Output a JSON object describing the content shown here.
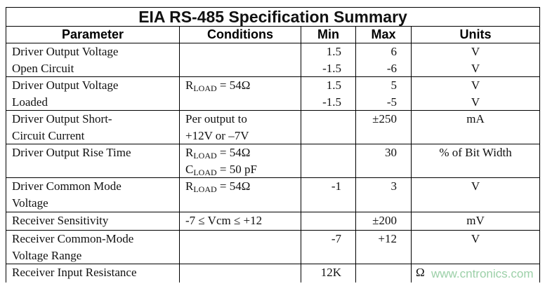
{
  "title": "EIA RS-485 Specification Summary",
  "headers": [
    "Parameter",
    "Conditions",
    "Min",
    "Max",
    "Units"
  ],
  "rows": [
    {
      "parameter": [
        "Driver Output Voltage",
        "Open Circuit"
      ],
      "conditions": [],
      "min": [
        "1.5",
        "-1.5"
      ],
      "max": [
        "6",
        "-6"
      ],
      "units": [
        "V",
        "V"
      ]
    },
    {
      "parameter": [
        "Driver Output Voltage",
        "Loaded"
      ],
      "conditions": [
        {
          "sym": "R",
          "sub": "LOAD",
          "rest": " = 54Ω"
        }
      ],
      "min": [
        "1.5",
        "-1.5"
      ],
      "max": [
        "5",
        "-5"
      ],
      "units": [
        "V",
        "V"
      ]
    },
    {
      "parameter": [
        "Driver Output Short-",
        "Circuit Current"
      ],
      "conditions": [
        {
          "sym": "Per output to",
          "sub": "",
          "rest": ""
        },
        {
          "sym": "+12V or –7V",
          "sub": "",
          "rest": ""
        }
      ],
      "min": [],
      "max": [
        "±250"
      ],
      "units": [
        "mA"
      ]
    },
    {
      "parameter": [
        "Driver Output Rise Time"
      ],
      "conditions": [
        {
          "sym": "R",
          "sub": "LOAD",
          "rest": " = 54Ω"
        },
        {
          "sym": "C",
          "sub": "LOAD",
          "rest": " = 50 pF"
        }
      ],
      "min": [],
      "max": [
        "30"
      ],
      "units": [
        "% of Bit Width"
      ]
    },
    {
      "parameter": [
        "Driver Common Mode",
        "Voltage"
      ],
      "conditions": [
        {
          "sym": "R",
          "sub": "LOAD",
          "rest": " = 54Ω"
        }
      ],
      "min": [
        "-1"
      ],
      "max": [
        "3"
      ],
      "units": [
        "V"
      ]
    },
    {
      "parameter": [
        "Receiver Sensitivity"
      ],
      "conditions": [
        {
          "sym": "-7 ≤ Vcm ≤ +12",
          "sub": "",
          "rest": ""
        }
      ],
      "min": [],
      "max": [
        "±200"
      ],
      "units": [
        "mV"
      ]
    },
    {
      "parameter": [
        "Receiver Common-Mode",
        "Voltage Range"
      ],
      "conditions": [],
      "min": [
        "-7"
      ],
      "max": [
        "+12"
      ],
      "units": [
        "V"
      ]
    },
    {
      "parameter": [
        "Receiver Input Resistance"
      ],
      "conditions": [],
      "min": [
        "12K"
      ],
      "max": [],
      "units": [
        "Ω"
      ]
    }
  ],
  "watermark": "www.cntronics.com"
}
